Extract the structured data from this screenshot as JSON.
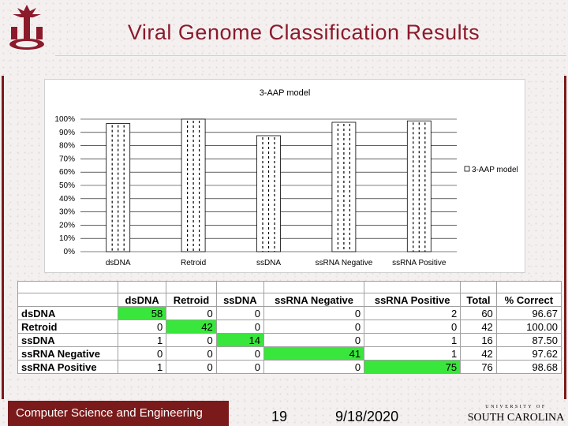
{
  "slide": {
    "title": "Viral Genome Classification Results",
    "footer": "Computer Science and Engineering",
    "page_number": "19",
    "date": "9/18/2020",
    "logo_text": "SOUTH CAROLINA",
    "logo_top": "UNIVERSITY OF"
  },
  "chart_data": {
    "type": "bar",
    "title": "3-AAP model",
    "categories": [
      "dsDNA",
      "Retroid",
      "ssDNA",
      "ssRNA Negative",
      "ssRNA Positive"
    ],
    "series": [
      {
        "name": "3-AAP model",
        "values": [
          96.67,
          100.0,
          87.5,
          97.62,
          98.68
        ]
      }
    ],
    "ylim": [
      0,
      100
    ],
    "yticks": [
      "0%",
      "10%",
      "20%",
      "30%",
      "40%",
      "50%",
      "60%",
      "70%",
      "80%",
      "90%",
      "100%"
    ],
    "xlabel": "",
    "ylabel": "",
    "legend": "right",
    "grid": true
  },
  "table": {
    "headers": [
      "",
      "dsDNA",
      "Retroid",
      "ssDNA",
      "ssRNA Negative",
      "ssRNA Positive",
      "Total",
      "% Correct"
    ],
    "rows": [
      {
        "label": "dsDNA",
        "cells": [
          "58",
          "0",
          "0",
          "0",
          "2",
          "60",
          "96.67"
        ]
      },
      {
        "label": "Retroid",
        "cells": [
          "0",
          "42",
          "0",
          "0",
          "0",
          "42",
          "100.00"
        ]
      },
      {
        "label": "ssDNA",
        "cells": [
          "1",
          "0",
          "14",
          "0",
          "1",
          "16",
          "87.50"
        ]
      },
      {
        "label": "ssRNA Negative",
        "cells": [
          "0",
          "0",
          "0",
          "41",
          "1",
          "42",
          "97.62"
        ]
      },
      {
        "label": "ssRNA Positive",
        "cells": [
          "1",
          "0",
          "0",
          "0",
          "75",
          "76",
          "98.68"
        ]
      }
    ],
    "highlight_color": "#39e63c"
  }
}
